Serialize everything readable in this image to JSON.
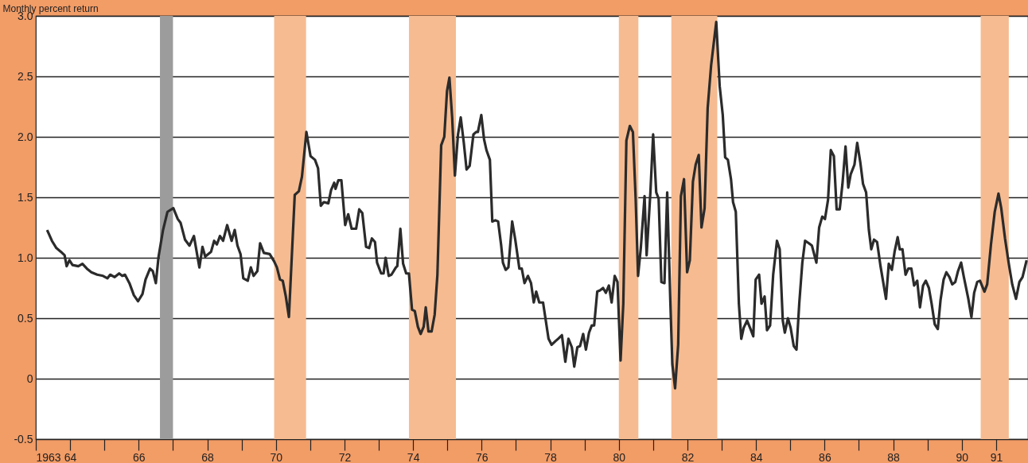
{
  "chart_data": {
    "type": "line",
    "ylabel": "Monthly percent return",
    "x": [
      1963.33,
      1963.47,
      1963.6,
      1963.73,
      1963.84,
      1963.9,
      1963.98,
      1964.07,
      1964.24,
      1964.36,
      1964.49,
      1964.62,
      1964.79,
      1964.96,
      1965.09,
      1965.17,
      1965.3,
      1965.43,
      1965.52,
      1965.6,
      1965.73,
      1965.86,
      1965.98,
      1966.11,
      1966.2,
      1966.33,
      1966.41,
      1966.5,
      1966.58,
      1966.71,
      1966.84,
      1967.01,
      1967.14,
      1967.22,
      1967.35,
      1967.48,
      1967.61,
      1967.77,
      1967.86,
      1967.94,
      1968.11,
      1968.2,
      1968.28,
      1968.37,
      1968.46,
      1968.58,
      1968.71,
      1968.8,
      1968.88,
      1968.97,
      1969.05,
      1969.18,
      1969.27,
      1969.35,
      1969.46,
      1969.54,
      1969.65,
      1969.82,
      1969.95,
      1970.03,
      1970.12,
      1970.2,
      1970.29,
      1970.38,
      1970.55,
      1970.67,
      1970.76,
      1970.89,
      1971.01,
      1971.14,
      1971.23,
      1971.31,
      1971.4,
      1971.53,
      1971.61,
      1971.7,
      1971.74,
      1971.82,
      1971.91,
      1972.02,
      1972.11,
      1972.21,
      1972.34,
      1972.43,
      1972.52,
      1972.63,
      1972.72,
      1972.8,
      1972.89,
      1972.95,
      1973.07,
      1973.14,
      1973.2,
      1973.29,
      1973.37,
      1973.5,
      1973.54,
      1973.63,
      1973.71,
      1973.8,
      1973.88,
      1973.97,
      1974.05,
      1974.14,
      1974.22,
      1974.31,
      1974.37,
      1974.45,
      1974.54,
      1974.63,
      1974.71,
      1974.82,
      1974.91,
      1974.99,
      1975.06,
      1975.14,
      1975.22,
      1975.31,
      1975.39,
      1975.48,
      1975.56,
      1975.65,
      1975.76,
      1975.84,
      1975.89,
      1975.99,
      1976.07,
      1976.14,
      1976.24,
      1976.31,
      1976.4,
      1976.48,
      1976.57,
      1976.62,
      1976.7,
      1976.78,
      1976.89,
      1976.98,
      1977.1,
      1977.17,
      1977.25,
      1977.35,
      1977.44,
      1977.52,
      1977.59,
      1977.68,
      1977.79,
      1977.87,
      1977.95,
      1978.04,
      1978.15,
      1978.23,
      1978.34,
      1978.44,
      1978.53,
      1978.63,
      1978.7,
      1978.79,
      1978.87,
      1978.96,
      1979.04,
      1979.13,
      1979.21,
      1979.28,
      1979.37,
      1979.45,
      1979.54,
      1979.62,
      1979.71,
      1979.79,
      1979.88,
      1979.96,
      1980.05,
      1980.13,
      1980.22,
      1980.32,
      1980.41,
      1980.49,
      1980.56,
      1980.64,
      1980.75,
      1980.81,
      1980.92,
      1981.0,
      1981.09,
      1981.16,
      1981.24,
      1981.33,
      1981.41,
      1981.5,
      1981.56,
      1981.64,
      1981.73,
      1981.81,
      1981.9,
      1981.99,
      1982.07,
      1982.16,
      1982.24,
      1982.33,
      1982.41,
      1982.5,
      1982.59,
      1982.69,
      1982.84,
      1982.94,
      1983.03,
      1983.1,
      1983.18,
      1983.27,
      1983.33,
      1983.41,
      1983.5,
      1983.57,
      1983.64,
      1983.74,
      1983.84,
      1983.92,
      1983.99,
      1984.09,
      1984.16,
      1984.25,
      1984.32,
      1984.41,
      1984.5,
      1984.61,
      1984.69,
      1984.78,
      1984.84,
      1984.93,
      1985.01,
      1985.1,
      1985.18,
      1985.26,
      1985.35,
      1985.43,
      1985.54,
      1985.63,
      1985.76,
      1985.84,
      1985.93,
      1986.01,
      1986.1,
      1986.18,
      1986.27,
      1986.35,
      1986.44,
      1986.52,
      1986.61,
      1986.69,
      1986.76,
      1986.87,
      1986.95,
      1987.04,
      1987.12,
      1987.21,
      1987.29,
      1987.36,
      1987.44,
      1987.53,
      1987.63,
      1987.79,
      1987.87,
      1987.96,
      1988.04,
      1988.13,
      1988.19,
      1988.27,
      1988.36,
      1988.44,
      1988.53,
      1988.61,
      1988.7,
      1988.78,
      1988.87,
      1988.95,
      1989.04,
      1989.12,
      1989.21,
      1989.3,
      1989.38,
      1989.47,
      1989.55,
      1989.64,
      1989.72,
      1989.81,
      1989.89,
      1989.98,
      1990.06,
      1990.19,
      1990.28,
      1990.36,
      1990.45,
      1990.53,
      1990.66,
      1990.74,
      1990.85,
      1990.96,
      1991.07,
      1991.15,
      1991.26,
      1991.37,
      1991.47,
      1991.58,
      1991.68,
      1991.77,
      1991.89
    ],
    "series": [
      {
        "color": "#2b2b2b",
        "values": [
          1.23,
          1.14,
          1.08,
          1.05,
          1.02,
          0.93,
          0.98,
          0.94,
          0.93,
          0.95,
          0.91,
          0.88,
          0.86,
          0.85,
          0.83,
          0.86,
          0.84,
          0.87,
          0.85,
          0.86,
          0.79,
          0.69,
          0.64,
          0.7,
          0.82,
          0.91,
          0.89,
          0.79,
          1.01,
          1.23,
          1.38,
          1.41,
          1.32,
          1.29,
          1.15,
          1.1,
          1.18,
          0.92,
          1.09,
          1.01,
          1.05,
          1.14,
          1.11,
          1.18,
          1.14,
          1.27,
          1.14,
          1.23,
          1.1,
          1.03,
          0.83,
          0.81,
          0.92,
          0.85,
          0.89,
          1.12,
          1.04,
          1.03,
          0.97,
          0.92,
          0.82,
          0.81,
          0.68,
          0.51,
          1.52,
          1.55,
          1.67,
          2.04,
          1.84,
          1.81,
          1.74,
          1.43,
          1.46,
          1.45,
          1.56,
          1.62,
          1.57,
          1.64,
          1.64,
          1.27,
          1.36,
          1.24,
          1.24,
          1.4,
          1.37,
          1.09,
          1.08,
          1.16,
          1.13,
          0.96,
          0.87,
          0.87,
          1.0,
          0.85,
          0.86,
          0.92,
          0.93,
          1.24,
          0.95,
          0.87,
          0.87,
          0.57,
          0.56,
          0.43,
          0.37,
          0.43,
          0.59,
          0.39,
          0.39,
          0.53,
          0.86,
          1.93,
          2.0,
          2.38,
          2.49,
          2.16,
          1.68,
          2.02,
          2.16,
          1.95,
          1.73,
          1.76,
          2.02,
          2.04,
          2.04,
          2.18,
          1.98,
          1.89,
          1.81,
          1.3,
          1.31,
          1.3,
          1.1,
          0.96,
          0.9,
          0.92,
          1.3,
          1.15,
          0.91,
          0.91,
          0.79,
          0.85,
          0.79,
          0.63,
          0.72,
          0.63,
          0.63,
          0.48,
          0.33,
          0.28,
          0.31,
          0.33,
          0.36,
          0.14,
          0.33,
          0.26,
          0.1,
          0.26,
          0.27,
          0.37,
          0.24,
          0.38,
          0.44,
          0.44,
          0.72,
          0.73,
          0.75,
          0.71,
          0.77,
          0.63,
          0.85,
          0.8,
          0.15,
          0.62,
          1.97,
          2.09,
          2.04,
          1.49,
          0.85,
          1.08,
          1.51,
          1.02,
          1.54,
          2.02,
          1.54,
          1.49,
          0.8,
          0.79,
          1.54,
          0.65,
          0.12,
          -0.08,
          0.28,
          1.51,
          1.65,
          0.88,
          0.98,
          1.63,
          1.77,
          1.85,
          1.25,
          1.41,
          2.24,
          2.59,
          2.95,
          2.42,
          2.18,
          1.83,
          1.81,
          1.65,
          1.46,
          1.38,
          0.62,
          0.33,
          0.42,
          0.48,
          0.41,
          0.35,
          0.82,
          0.86,
          0.62,
          0.68,
          0.4,
          0.44,
          0.86,
          1.14,
          1.07,
          0.48,
          0.38,
          0.5,
          0.42,
          0.27,
          0.24,
          0.62,
          0.96,
          1.14,
          1.12,
          1.1,
          0.96,
          1.25,
          1.34,
          1.32,
          1.48,
          1.89,
          1.84,
          1.4,
          1.4,
          1.61,
          1.92,
          1.58,
          1.69,
          1.77,
          1.95,
          1.79,
          1.61,
          1.54,
          1.23,
          1.07,
          1.15,
          1.13,
          0.93,
          0.66,
          0.95,
          0.9,
          1.05,
          1.17,
          1.07,
          1.07,
          0.86,
          0.91,
          0.91,
          0.77,
          0.81,
          0.59,
          0.77,
          0.81,
          0.75,
          0.62,
          0.45,
          0.41,
          0.65,
          0.82,
          0.88,
          0.84,
          0.78,
          0.8,
          0.89,
          0.96,
          0.84,
          0.66,
          0.51,
          0.71,
          0.8,
          0.81,
          0.72,
          0.78,
          1.11,
          1.38,
          1.53,
          1.41,
          1.16,
          0.95,
          0.78,
          0.66,
          0.8,
          0.84,
          0.98
        ]
      }
    ],
    "xlim": [
      1963.0,
      1991.93
    ],
    "ylim": [
      -0.5,
      3.0
    ],
    "yticks": [
      {
        "value": -0.5,
        "label": "-0.5"
      },
      0,
      0.5,
      {
        "value": 1,
        "label": "1.0"
      },
      1.5,
      {
        "value": 2,
        "label": "2.0"
      },
      2.5,
      {
        "value": 3,
        "label": "3.0"
      }
    ],
    "xticks": [
      1963,
      {
        "value": 1964,
        "label": "64"
      },
      {
        "value": 1965,
        "label": null
      },
      {
        "value": 1966,
        "label": "66"
      },
      {
        "value": 1967,
        "label": null
      },
      {
        "value": 1968,
        "label": "68"
      },
      {
        "value": 1969,
        "label": null
      },
      {
        "value": 1970,
        "label": "70"
      },
      {
        "value": 1971,
        "label": null
      },
      {
        "value": 1972,
        "label": "72"
      },
      {
        "value": 1973,
        "label": null
      },
      {
        "value": 1974,
        "label": "74"
      },
      {
        "value": 1975,
        "label": null
      },
      {
        "value": 1976,
        "label": "76"
      },
      {
        "value": 1977,
        "label": null
      },
      {
        "value": 1978,
        "label": "78"
      },
      {
        "value": 1979,
        "label": null
      },
      {
        "value": 1980,
        "label": "80"
      },
      {
        "value": 1981,
        "label": null
      },
      {
        "value": 1982,
        "label": "82"
      },
      {
        "value": 1983,
        "label": null
      },
      {
        "value": 1984,
        "label": "84"
      },
      {
        "value": 1985,
        "label": null
      },
      {
        "value": 1986,
        "label": "86"
      },
      {
        "value": 1987,
        "label": null
      },
      {
        "value": 1988,
        "label": "88"
      },
      {
        "value": 1989,
        "label": null
      },
      {
        "value": 1990,
        "label": "90"
      },
      {
        "value": 1991,
        "label": "91"
      }
    ],
    "bands": [
      {
        "axis": "x",
        "from": 1966.62,
        "to": 1967.0,
        "color": "#9c9c9c"
      },
      {
        "axis": "x",
        "from": 1969.95,
        "to": 1970.88,
        "color": "#f6bb90"
      },
      {
        "axis": "x",
        "from": 1973.88,
        "to": 1975.25,
        "color": "#f6bb90"
      },
      {
        "axis": "x",
        "from": 1980.0,
        "to": 1980.57,
        "color": "#f6bb90"
      },
      {
        "axis": "x",
        "from": 1981.53,
        "to": 1982.87,
        "color": "#f6bb90"
      },
      {
        "axis": "x",
        "from": 1990.55,
        "to": 1991.37,
        "color": "#f6bb90"
      }
    ],
    "grid": "y",
    "line_style": "solid",
    "marker": "none"
  }
}
